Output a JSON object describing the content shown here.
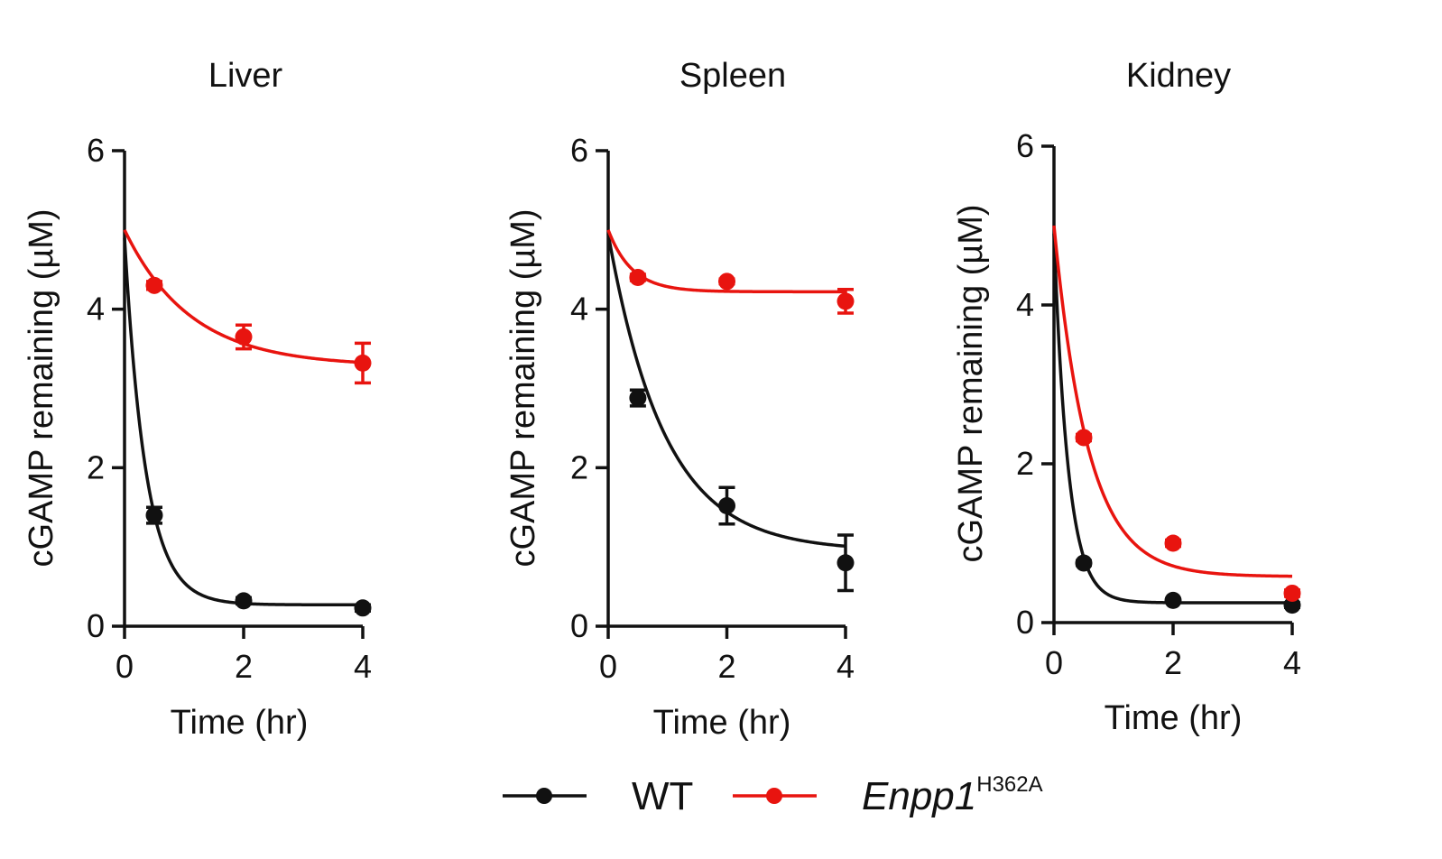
{
  "legend": {
    "wt_label": "WT",
    "mutant_label_italic": "Enpp1",
    "mutant_label_sup": "H362A"
  },
  "colors": {
    "wt": "#111111",
    "mutant": "#e8140f"
  },
  "chart_data": [
    {
      "type": "scatter",
      "title": "Liver",
      "xlabel": "Time (hr)",
      "ylabel": "cGAMP remaining (µM)",
      "xlim": [
        0,
        4
      ],
      "ylim": [
        0,
        6
      ],
      "xticks": [
        "0",
        "2",
        "4"
      ],
      "yticks": [
        "0",
        "2",
        "4",
        "6"
      ],
      "series": [
        {
          "name": "WT",
          "x": [
            0.5,
            2,
            4
          ],
          "y": [
            1.4,
            0.32,
            0.23
          ],
          "err": [
            0.1,
            0.04,
            0.04
          ],
          "fit": {
            "y0": 4.9,
            "plateau": 0.27,
            "k": 2.8
          }
        },
        {
          "name": "Enpp1 H362A",
          "x": [
            0.5,
            2,
            4
          ],
          "y": [
            4.3,
            3.65,
            3.32
          ],
          "err": [
            0.05,
            0.15,
            0.25
          ],
          "fit": {
            "y0": 5.0,
            "plateau": 3.28,
            "k": 0.9
          }
        }
      ]
    },
    {
      "type": "scatter",
      "title": "Spleen",
      "xlabel": "Time (hr)",
      "ylabel": "cGAMP remaining (µM)",
      "xlim": [
        0,
        4
      ],
      "ylim": [
        0,
        6
      ],
      "xticks": [
        "0",
        "2",
        "4"
      ],
      "yticks": [
        "0",
        "2",
        "4",
        "6"
      ],
      "series": [
        {
          "name": "WT",
          "x": [
            0.5,
            2,
            4
          ],
          "y": [
            2.88,
            1.52,
            0.8
          ],
          "err": [
            0.1,
            0.23,
            0.35
          ],
          "fit": {
            "y0": 4.95,
            "plateau": 0.95,
            "k": 1.05
          }
        },
        {
          "name": "Enpp1 H362A",
          "x": [
            0.5,
            2,
            4
          ],
          "y": [
            4.4,
            4.35,
            4.1
          ],
          "err": [
            0.04,
            0.03,
            0.15
          ],
          "fit": {
            "y0": 5.0,
            "plateau": 4.22,
            "k": 2.5
          }
        }
      ]
    },
    {
      "type": "scatter",
      "title": "Kidney",
      "xlabel": "Time (hr)",
      "ylabel": "cGAMP remaining (µM)",
      "xlim": [
        0,
        4
      ],
      "ylim": [
        0,
        6
      ],
      "xticks": [
        "0",
        "2",
        "4"
      ],
      "yticks": [
        "0",
        "2",
        "4",
        "6"
      ],
      "series": [
        {
          "name": "WT",
          "x": [
            0.5,
            2,
            4
          ],
          "y": [
            0.75,
            0.28,
            0.22
          ],
          "err": [
            0.03,
            0.02,
            0.03
          ],
          "fit": {
            "y0": 4.9,
            "plateau": 0.25,
            "k": 4.2
          }
        },
        {
          "name": "Enpp1 H362A",
          "x": [
            0.5,
            2,
            4
          ],
          "y": [
            2.33,
            1.0,
            0.37
          ],
          "err": [
            0.04,
            0.04,
            0.04
          ],
          "fit": {
            "y0": 5.0,
            "plateau": 0.58,
            "k": 1.75
          }
        }
      ]
    }
  ]
}
